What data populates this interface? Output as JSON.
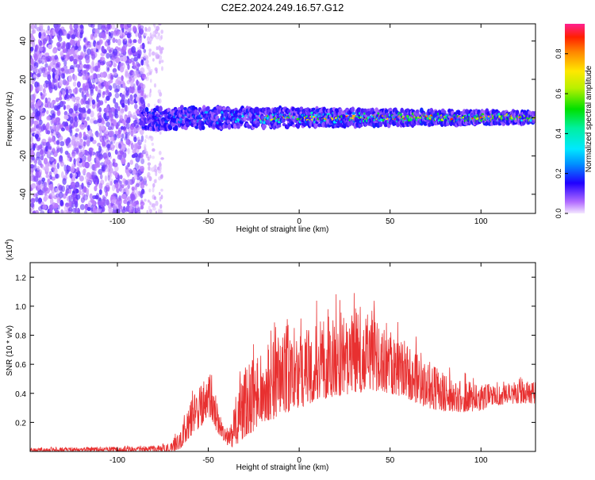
{
  "title": "C2E2.2024.249.16.57.G12",
  "chart_data": [
    {
      "type": "heatmap",
      "xlabel": "Height of straight line (km)",
      "ylabel": "Frequency (Hz)",
      "xlim": [
        -148,
        130
      ],
      "ylim": [
        -50,
        49
      ],
      "x_ticks": [
        -100,
        -50,
        0,
        50,
        100
      ],
      "y_ticks": [
        -40,
        -20,
        0,
        20,
        40
      ],
      "x_tick_labels": [
        "-100",
        "-50",
        "0",
        "50",
        "100"
      ],
      "y_tick_labels": [
        "-40",
        "-20",
        "0",
        "20",
        "40"
      ],
      "colorbar": {
        "label": "Normalized spectral amplitude",
        "range": [
          0,
          0.95
        ],
        "ticks": [
          0.0,
          0.2,
          0.4,
          0.6,
          0.8
        ],
        "tick_labels": [
          "0.0",
          "0.2",
          "0.4",
          "0.6",
          "0.8"
        ]
      },
      "regions": [
        {
          "x": [
            -148,
            -85
          ],
          "frequency_range": [
            -50,
            49
          ],
          "amplitude": [
            0.02,
            0.12
          ],
          "pattern": "scattered noise"
        },
        {
          "x": [
            -85,
            -75
          ],
          "frequency_range": [
            -50,
            49
          ],
          "amplitude": [
            0.01,
            0.05
          ],
          "pattern": "sparse noise"
        },
        {
          "x": [
            -87,
            130
          ],
          "frequency_center": 0,
          "band_halfwidth_hz": [
            6,
            3
          ],
          "amplitude": [
            0.05,
            0.9
          ],
          "pattern": "signal band near 0 Hz"
        }
      ]
    },
    {
      "type": "line",
      "xlabel": "Height of straight line (km)",
      "ylabel": "SNR (10 * v/v)",
      "y_multiplier": "(x10",
      "y_multiplier_exp": "4",
      "y_multiplier_close": ")",
      "xlim": [
        -148,
        130
      ],
      "ylim": [
        0,
        1.3
      ],
      "x_ticks": [
        -100,
        -50,
        0,
        50,
        100
      ],
      "y_ticks": [
        0.2,
        0.4,
        0.6,
        0.8,
        1.0,
        1.2
      ],
      "x_tick_labels": [
        "-100",
        "-50",
        "0",
        "50",
        "100"
      ],
      "y_tick_labels": [
        "0.2",
        "0.4",
        "0.6",
        "0.8",
        "1.0",
        "1.2"
      ],
      "series": [
        {
          "color": "#e83030",
          "envelope": {
            "x": [
              -148,
              -100,
              -80,
              -70,
              -65,
              -60,
              -55,
              -50,
              -46,
              -42,
              -38,
              -34,
              -30,
              -20,
              -10,
              0,
              10,
              20,
              30,
              40,
              50,
              60,
              70,
              80,
              90,
              100,
              110,
              120,
              130
            ],
            "low": [
              0.0,
              0.0,
              0.0,
              0.0,
              0.02,
              0.1,
              0.15,
              0.25,
              0.15,
              0.08,
              0.02,
              0.05,
              0.1,
              0.18,
              0.25,
              0.3,
              0.35,
              0.38,
              0.4,
              0.42,
              0.4,
              0.36,
              0.3,
              0.28,
              0.27,
              0.28,
              0.32,
              0.33,
              0.33
            ],
            "high": [
              0.03,
              0.04,
              0.05,
              0.08,
              0.2,
              0.4,
              0.55,
              0.6,
              0.45,
              0.2,
              0.18,
              0.55,
              0.75,
              0.85,
              0.95,
              1.0,
              1.05,
              1.1,
              1.12,
              1.1,
              0.95,
              0.85,
              0.75,
              0.62,
              0.55,
              0.52,
              0.5,
              0.52,
              0.52
            ]
          }
        }
      ]
    }
  ]
}
